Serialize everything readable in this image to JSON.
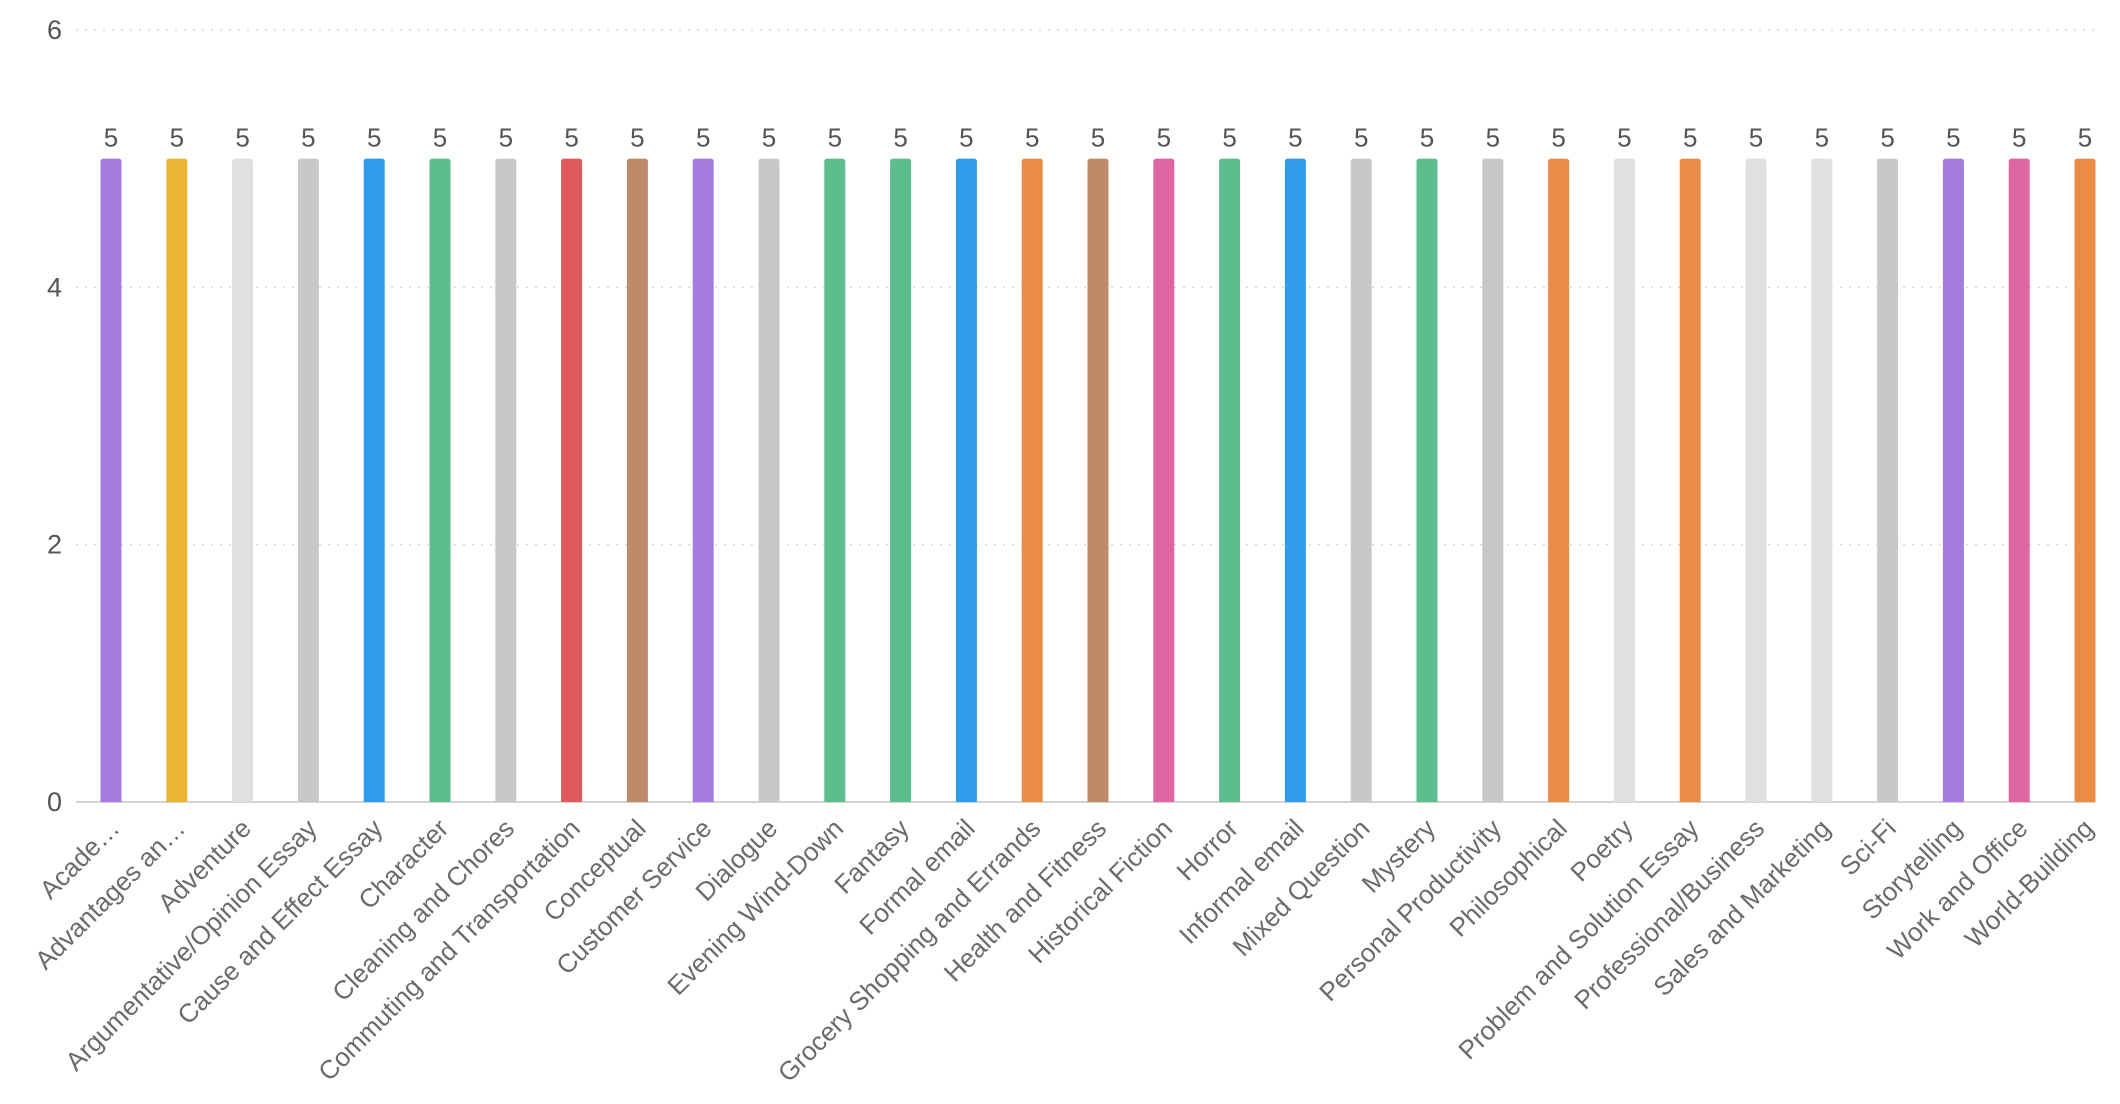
{
  "chart_data": {
    "type": "bar",
    "title": "",
    "xlabel": "",
    "ylabel": "",
    "ylim": [
      0,
      6
    ],
    "y_ticks": [
      0,
      2,
      4,
      6
    ],
    "grid": true,
    "categories": [
      "Acade…",
      "Advantages an…",
      "Adventure",
      "Argumentative/Opinion Essay",
      "Cause and Effect Essay",
      "Character",
      "Cleaning and Chores",
      "Commuting and Transportation",
      "Conceptual",
      "Customer Service",
      "Dialogue",
      "Evening Wind-Down",
      "Fantasy",
      "Formal email",
      "Grocery Shopping and Errands",
      "Health and Fitness",
      "Historical Fiction",
      "Horror",
      "Informal email",
      "Mixed Question",
      "Mystery",
      "Personal Productivity",
      "Philosophical",
      "Poetry",
      "Problem and Solution Essay",
      "Professional/Business",
      "Sales and Marketing",
      "Sci-Fi",
      "Storytelling",
      "Work and Office",
      "World-Building"
    ],
    "values": [
      5,
      5,
      5,
      5,
      5,
      5,
      5,
      5,
      5,
      5,
      5,
      5,
      5,
      5,
      5,
      5,
      5,
      5,
      5,
      5,
      5,
      5,
      5,
      5,
      5,
      5,
      5,
      5,
      5,
      5,
      5
    ],
    "colors": [
      "#a57be0",
      "#e8b632",
      "#e0e0e0",
      "#c8c8c8",
      "#2f9bea",
      "#5dbd8c",
      "#c8c8c8",
      "#df5b5b",
      "#c0896a",
      "#a57be0",
      "#c8c8c8",
      "#5dbd8c",
      "#5dbd8c",
      "#2f9bea",
      "#e98c45",
      "#c0896a",
      "#e066a3",
      "#5dbd8c",
      "#2f9bea",
      "#c8c8c8",
      "#5dbd8c",
      "#c8c8c8",
      "#e98c45",
      "#e0e0e0",
      "#e98c45",
      "#e0e0e0",
      "#e0e0e0",
      "#c8c8c8",
      "#a57be0",
      "#e066a3",
      "#e98c45"
    ]
  }
}
